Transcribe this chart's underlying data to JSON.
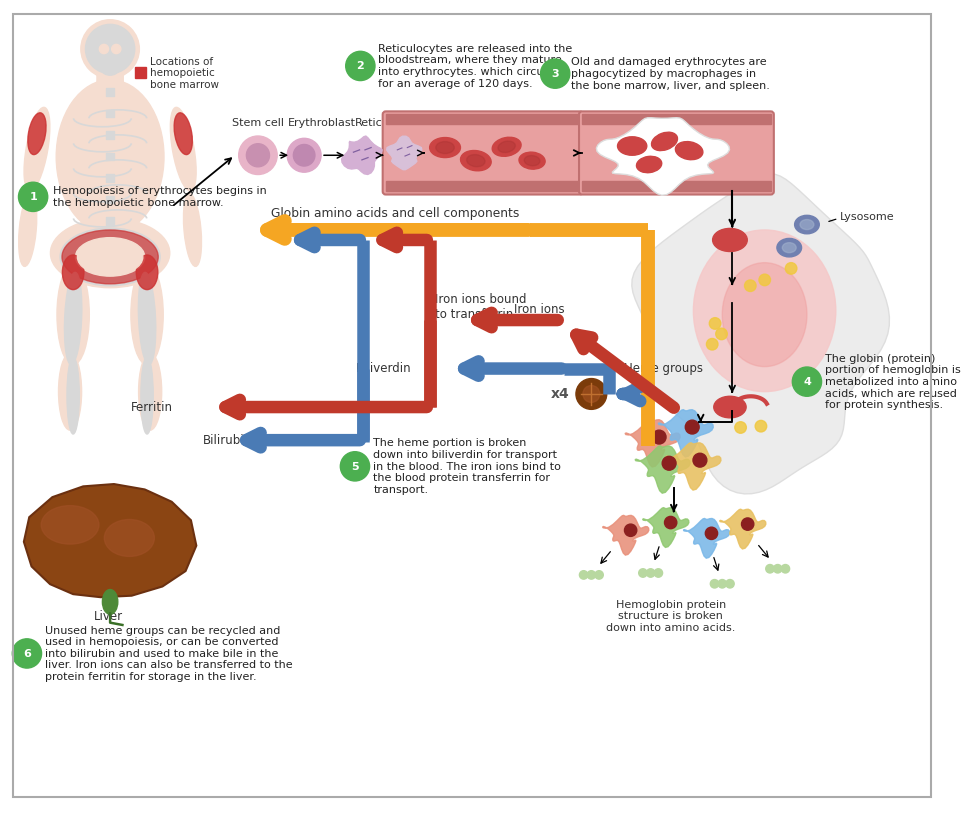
{
  "bg_color": "#ffffff",
  "green_color": "#4CAF50",
  "orange_color": "#F5A623",
  "blue_color": "#4A7BB5",
  "red_color": "#C0392B",
  "skin_color": "#F5DDD0",
  "bone_color": "#D8D8D8",
  "red_marrow_color": "#CC3333",
  "blood_vessel_fill": "#E8A0A0",
  "blood_vessel_wall": "#C07070",
  "rbc_color": "#CC4444",
  "macro_gray": "#E8E8E8",
  "liver_brown": "#8B4513",
  "lyso_blue": "#7080B0",
  "step1_text": "Hemopoiesis of erythrocytes begins in\nthe hemopoietic bone marrow.",
  "step2_text": "Reticulocytes are released into the\nbloodstream, where they mature\ninto erythrocytes. which circulate\nfor an average of 120 days.",
  "step3_text": "Old and damaged erythrocytes are\nphagocytized by macrophages in\nthe bone marrow, liver, and spleen.",
  "step4_text": "The globin (protein)\nportion of hemoglobin is\nmetabolized into amino\nacids, which are reused\nfor protein synthesis.",
  "step5_text": "The heme portion is broken\ndown into biliverdin for transport\nin the blood. The iron ions bind to\nthe blood protein transferrin for\ntransport.",
  "step6_text": "Unused heme groups can be recycled and\nused in hemopoiesis, or can be converted\ninto bilirubin and used to make bile in the\nliver. Iron ions can also be transferred to the\nprotein ferritin for storage in the liver.",
  "legend_text": "Locations of\nhemopoietic\nbone marrow",
  "globin_label": "Globin amino acids and cell components",
  "iron_ions_label": "Iron ions",
  "iron_trans_label": "Iron ions bound\nto transferrin",
  "ferritin_label": "Ferritin",
  "biliverdin_label": "Biliverdin",
  "bilirubin_label": "Bilirubin",
  "heme_groups_label": "Heme groups",
  "x4_label": "x4",
  "lysosome_label": "Lysosome",
  "liver_label": "Liver",
  "stem_label": "Stem cell",
  "erythro_label": "Erythroblast",
  "retic_label": "Reticulocyte",
  "hemo_label": "Hemoglobin protein\nstructure is broken\ndown into amino acids."
}
